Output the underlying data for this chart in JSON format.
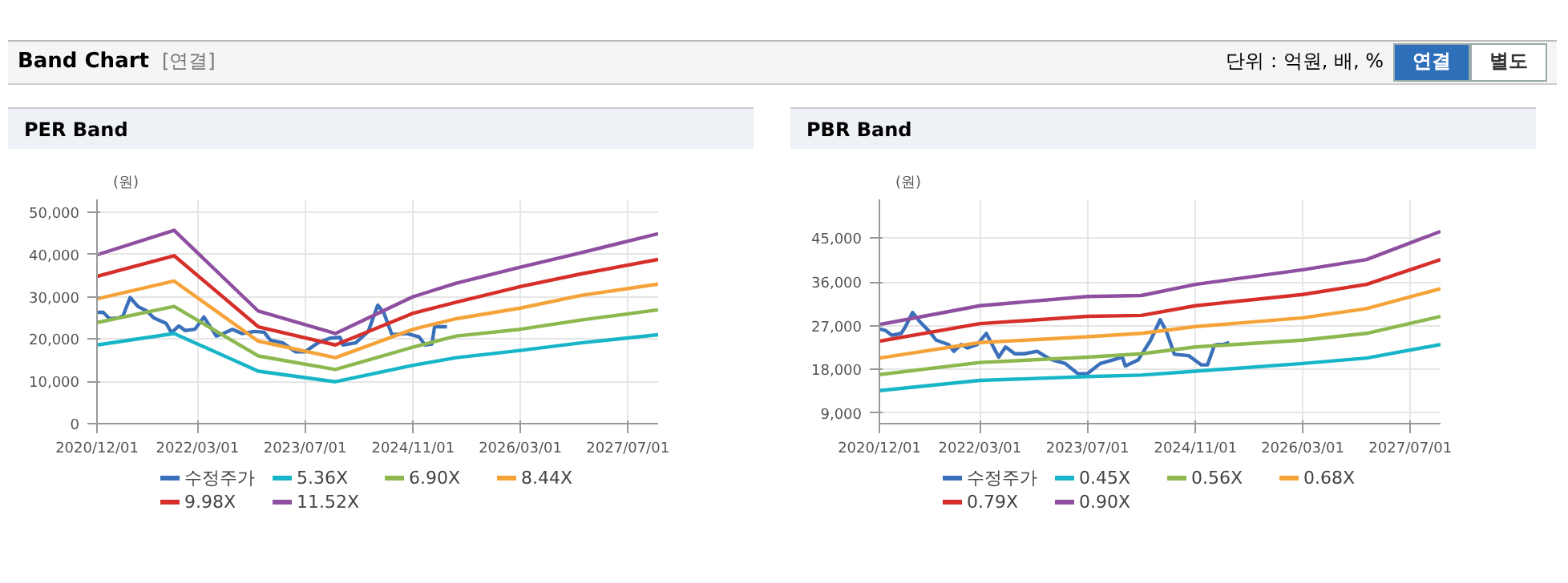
{
  "chart_data": [
    {
      "type": "other",
      "title": "Band Chart",
      "annotations": [
        "[연결]",
        "단위 : 억원, 배, %",
        "연결",
        "별도"
      ]
    },
    {
      "type": "line",
      "title": "PER Band",
      "ylabel": "(원)",
      "grid": true,
      "legend": "bottom",
      "xlim": [
        "2020-12-01",
        "2027-11-15"
      ],
      "ylim": [
        0,
        53000
      ],
      "xticks": [
        {
          "value": "2020-12-01",
          "label": "2020/12/01"
        },
        {
          "value": "2022-03-01",
          "label": "2022/03/01"
        },
        {
          "value": "2023-07-01",
          "label": "2023/07/01"
        },
        {
          "value": "2024-11-01",
          "label": "2024/11/01"
        },
        {
          "value": "2026-03-01",
          "label": "2026/03/01"
        },
        {
          "value": "2027-07-01",
          "label": "2027/07/01"
        }
      ],
      "yticks": [
        0,
        {
          "value": 10000,
          "label": "10,000"
        },
        {
          "value": 20000,
          "label": "20,000"
        },
        {
          "value": 30000,
          "label": "30,000"
        },
        {
          "value": 40000,
          "label": "40,000"
        },
        {
          "value": 50000,
          "label": "50,000"
        }
      ],
      "series": [
        {
          "name": "수정주가",
          "color": "#3a6fba",
          "x": [
            "2020-12-01",
            "2020-12-29",
            "2021-01-27",
            "2021-03-10",
            "2021-03-29",
            "2021-04-30",
            "2021-06-04",
            "2021-07-15",
            "2021-08-15",
            "2021-10-10",
            "2021-11-03",
            "2021-12-07",
            "2022-01-04",
            "2022-02-17",
            "2022-03-30",
            "2022-05-25",
            "2022-06-25",
            "2022-08-06",
            "2022-09-18",
            "2022-11-15",
            "2022-12-28",
            "2023-01-25",
            "2023-03-22",
            "2023-05-18",
            "2023-07-01",
            "2023-08-28",
            "2023-10-22",
            "2023-12-06",
            "2023-12-19",
            "2024-02-15",
            "2024-04-12",
            "2024-05-25",
            "2024-06-22",
            "2024-07-28",
            "2024-10-01",
            "2024-11-28",
            "2024-12-25",
            "2025-01-25",
            "2025-02-06",
            "2025-03-06",
            "2025-04-03"
          ],
          "values": [
            26300,
            26300,
            24800,
            25000,
            25500,
            29800,
            27700,
            26600,
            25000,
            23700,
            21500,
            23100,
            22000,
            22300,
            25200,
            20700,
            21300,
            22300,
            21300,
            21800,
            21600,
            19700,
            19100,
            17000,
            17000,
            19100,
            20200,
            20400,
            18600,
            19100,
            21800,
            28000,
            26100,
            21000,
            21300,
            20500,
            18600,
            18800,
            22900,
            22900,
            22900
          ]
        },
        {
          "name": "5.36X",
          "color": "#17b5c8",
          "x": [
            "2020-12-01",
            "2021-11-15",
            "2022-12-01",
            "2023-11-15",
            "2024-11-01",
            "2025-05-15",
            "2026-03-01",
            "2026-12-01",
            "2027-11-15"
          ],
          "values": [
            18600,
            21300,
            12400,
            9900,
            13800,
            15600,
            17300,
            19100,
            21000
          ]
        },
        {
          "name": "6.90X",
          "color": "#8cb84f",
          "x": [
            "2020-12-01",
            "2021-11-15",
            "2022-12-01",
            "2023-11-15",
            "2024-11-01",
            "2025-05-15",
            "2026-03-01",
            "2026-12-01",
            "2027-11-15"
          ],
          "values": [
            23900,
            27700,
            16000,
            12800,
            18100,
            20700,
            22300,
            24500,
            26900
          ]
        },
        {
          "name": "8.44X",
          "color": "#f5a338",
          "x": [
            "2020-12-01",
            "2021-11-15",
            "2022-12-01",
            "2023-11-15",
            "2024-11-01",
            "2025-05-15",
            "2026-03-01",
            "2026-12-01",
            "2027-11-15"
          ],
          "values": [
            29500,
            33700,
            19500,
            15600,
            22300,
            24800,
            27300,
            30300,
            33000
          ]
        },
        {
          "name": "9.98X",
          "color": "#d62f2a",
          "x": [
            "2020-12-01",
            "2021-11-15",
            "2022-12-01",
            "2023-11-15",
            "2024-11-01",
            "2025-05-15",
            "2026-03-01",
            "2026-12-01",
            "2027-11-15"
          ],
          "values": [
            34800,
            39700,
            22900,
            18600,
            26100,
            28700,
            32400,
            35400,
            38800
          ]
        },
        {
          "name": "11.52X",
          "color": "#8f4fa0",
          "x": [
            "2020-12-01",
            "2021-11-15",
            "2022-12-01",
            "2023-11-15",
            "2024-11-01",
            "2025-05-15",
            "2026-03-01",
            "2026-12-01",
            "2027-11-15"
          ],
          "values": [
            39900,
            45700,
            26600,
            21300,
            30000,
            33200,
            37000,
            40400,
            44900
          ]
        }
      ]
    },
    {
      "type": "line",
      "title": "PBR Band",
      "ylabel": "(원)",
      "grid": true,
      "legend": "bottom",
      "xlim": [
        "2020-12-01",
        "2027-11-15"
      ],
      "ylim": [
        6800,
        53000
      ],
      "xticks": [
        {
          "value": "2020-12-01",
          "label": "2020/12/01"
        },
        {
          "value": "2022-03-01",
          "label": "2022/03/01"
        },
        {
          "value": "2023-07-01",
          "label": "2023/07/01"
        },
        {
          "value": "2024-11-01",
          "label": "2024/11/01"
        },
        {
          "value": "2026-03-01",
          "label": "2026/03/01"
        },
        {
          "value": "2027-07-01",
          "label": "2027/07/01"
        }
      ],
      "yticks": [
        {
          "value": 9000,
          "label": "9,000"
        },
        {
          "value": 18000,
          "label": "18,000"
        },
        {
          "value": 27000,
          "label": "27,000"
        },
        {
          "value": 36000,
          "label": "36,000"
        },
        {
          "value": 45000,
          "label": "45,000"
        }
      ],
      "series": [
        {
          "name": "수정주가",
          "color": "#3a6fba",
          "x": [
            "2020-12-01",
            "2020-12-29",
            "2021-01-27",
            "2021-03-10",
            "2021-03-29",
            "2021-04-30",
            "2021-06-04",
            "2021-07-15",
            "2021-08-15",
            "2021-10-10",
            "2021-11-03",
            "2021-12-07",
            "2022-01-04",
            "2022-02-17",
            "2022-03-30",
            "2022-05-25",
            "2022-06-25",
            "2022-08-06",
            "2022-09-18",
            "2022-11-15",
            "2022-12-28",
            "2023-01-25",
            "2023-03-22",
            "2023-05-18",
            "2023-07-01",
            "2023-08-28",
            "2023-10-22",
            "2023-12-06",
            "2023-12-19",
            "2024-02-15",
            "2024-04-12",
            "2024-05-25",
            "2024-06-22",
            "2024-07-28",
            "2024-10-01",
            "2024-11-28",
            "2024-12-25",
            "2025-01-25",
            "2025-02-06",
            "2025-03-06",
            "2025-04-03"
          ],
          "values": [
            26300,
            26000,
            25000,
            25400,
            26800,
            29700,
            27700,
            25800,
            24000,
            23100,
            21700,
            23100,
            22400,
            23100,
            25400,
            20500,
            22600,
            21200,
            21200,
            21700,
            20500,
            19900,
            19200,
            17100,
            17100,
            19200,
            19900,
            20500,
            18700,
            19900,
            24000,
            28200,
            25800,
            21100,
            20800,
            18900,
            18900,
            22900,
            23100,
            23100,
            23500
          ]
        },
        {
          "name": "0.45X",
          "color": "#17b5c8",
          "x": [
            "2020-12-01",
            "2022-03-01",
            "2023-07-01",
            "2024-03-01",
            "2024-11-01",
            "2026-03-01",
            "2026-12-15",
            "2027-11-15"
          ],
          "values": [
            13600,
            15700,
            16500,
            16800,
            17600,
            19200,
            20300,
            23100
          ]
        },
        {
          "name": "0.56X",
          "color": "#8cb84f",
          "x": [
            "2020-12-01",
            "2022-03-01",
            "2023-07-01",
            "2024-03-01",
            "2024-11-01",
            "2026-03-01",
            "2026-12-15",
            "2027-11-15"
          ],
          "values": [
            16900,
            19400,
            20500,
            21200,
            22600,
            24000,
            25400,
            28900
          ]
        },
        {
          "name": "0.68X",
          "color": "#f5a338",
          "x": [
            "2020-12-01",
            "2022-03-01",
            "2023-07-01",
            "2024-03-01",
            "2024-11-01",
            "2026-03-01",
            "2026-12-15",
            "2027-11-15"
          ],
          "values": [
            20300,
            23500,
            24700,
            25400,
            26800,
            28600,
            30500,
            34600
          ]
        },
        {
          "name": "0.79X",
          "color": "#d62f2a",
          "x": [
            "2020-12-01",
            "2022-03-01",
            "2023-07-01",
            "2024-03-01",
            "2024-11-01",
            "2026-03-01",
            "2026-12-15",
            "2027-11-15"
          ],
          "values": [
            23800,
            27400,
            28900,
            29100,
            31100,
            33400,
            35500,
            40600
          ]
        },
        {
          "name": "0.90X",
          "color": "#8f4fa0",
          "x": [
            "2020-12-01",
            "2022-03-01",
            "2023-07-01",
            "2024-03-01",
            "2024-11-01",
            "2026-03-01",
            "2026-12-15",
            "2027-11-15"
          ],
          "values": [
            27200,
            31100,
            33000,
            33200,
            35500,
            38500,
            40600,
            46400
          ]
        }
      ]
    }
  ]
}
